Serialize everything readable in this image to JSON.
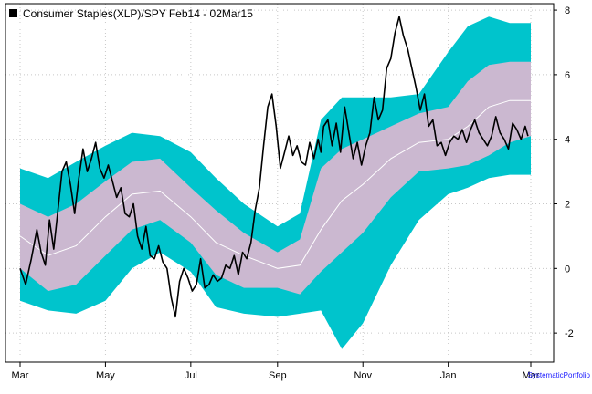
{
  "chart_data": {
    "type": "line",
    "title": "Consumer Staples(XLP)/SPY Feb14 - 02Mar15",
    "xlabel": "",
    "ylabel": "",
    "credit": "SystematicPortfolio",
    "x_axis": {
      "labels": [
        "Mar",
        "May",
        "Jul",
        "Sep",
        "Nov",
        "Jan",
        "Mar"
      ],
      "label_positions": [
        0,
        61,
        122,
        184,
        245,
        306,
        365
      ],
      "range": [
        0,
        380
      ]
    },
    "y_axis": {
      "ticks": [
        -2,
        0,
        2,
        4,
        6,
        8
      ],
      "range": [
        -2.9,
        8.2
      ],
      "position": "right"
    },
    "grid": true,
    "legend": {
      "position": "top-left",
      "entries": [
        "Consumer Staples(XLP)/SPY Feb14 - 02Mar15"
      ]
    },
    "colors": {
      "outer_band": "#00c4cc",
      "inner_band": "#cbb8d0",
      "midline": "#ffffff",
      "series": "#000000",
      "grid": "#c8c8c8"
    },
    "bands": {
      "x": [
        0,
        20,
        40,
        61,
        80,
        100,
        122,
        140,
        160,
        184,
        200,
        215,
        230,
        245,
        265,
        285,
        306,
        320,
        335,
        350,
        365
      ],
      "mid": [
        1.0,
        0.4,
        0.7,
        1.6,
        2.3,
        2.4,
        1.6,
        0.8,
        0.4,
        0.0,
        0.1,
        1.2,
        2.1,
        2.6,
        3.4,
        3.9,
        4.0,
        4.4,
        5.0,
        5.2,
        5.2
      ],
      "inner_upper": [
        2.0,
        1.6,
        2.0,
        2.7,
        3.3,
        3.4,
        2.5,
        1.8,
        1.1,
        0.5,
        0.9,
        3.1,
        3.7,
        4.0,
        4.4,
        4.8,
        5.0,
        5.8,
        6.3,
        6.4,
        6.4
      ],
      "inner_lower": [
        0.0,
        -0.7,
        -0.5,
        0.4,
        1.2,
        1.5,
        0.8,
        -0.2,
        -0.6,
        -0.6,
        -0.8,
        -0.1,
        0.5,
        1.1,
        2.2,
        3.0,
        3.1,
        3.2,
        3.5,
        3.9,
        4.1
      ],
      "outer_upper": [
        3.1,
        2.8,
        3.3,
        3.8,
        4.2,
        4.1,
        3.6,
        2.8,
        2.0,
        1.3,
        1.7,
        4.6,
        5.3,
        5.3,
        5.3,
        5.4,
        6.7,
        7.5,
        7.8,
        7.6,
        7.6
      ],
      "outer_lower": [
        -1.0,
        -1.3,
        -1.4,
        -1.0,
        0.0,
        0.5,
        -0.1,
        -1.2,
        -1.4,
        -1.5,
        -1.4,
        -1.3,
        -2.5,
        -1.7,
        0.1,
        1.5,
        2.3,
        2.5,
        2.8,
        2.9,
        2.9
      ]
    },
    "series": [
      {
        "name": "Consumer Staples(XLP)/SPY Feb14 - 02Mar15",
        "x": [
          0,
          4,
          8,
          12,
          15,
          18,
          21,
          24,
          27,
          30,
          33,
          36,
          39,
          42,
          45,
          48,
          51,
          54,
          57,
          60,
          63,
          66,
          69,
          72,
          75,
          78,
          81,
          84,
          87,
          90,
          93,
          96,
          99,
          102,
          105,
          108,
          111,
          114,
          117,
          120,
          123,
          126,
          129,
          132,
          135,
          138,
          141,
          144,
          147,
          150,
          153,
          156,
          159,
          162,
          165,
          168,
          171,
          174,
          177,
          180,
          183,
          186,
          189,
          192,
          195,
          198,
          201,
          204,
          207,
          210,
          213,
          215,
          217,
          220,
          223,
          226,
          229,
          232,
          235,
          238,
          241,
          244,
          247,
          250,
          253,
          256,
          259,
          262,
          265,
          268,
          271,
          274,
          277,
          280,
          283,
          286,
          289,
          292,
          295,
          298,
          301,
          304,
          307,
          310,
          313,
          316,
          319,
          322,
          325,
          328,
          331,
          334,
          337,
          340,
          343,
          346,
          349,
          352,
          355,
          358,
          361,
          363
        ],
        "values": [
          0.0,
          -0.5,
          0.3,
          1.2,
          0.5,
          0.1,
          1.5,
          0.6,
          1.8,
          3.0,
          3.3,
          2.6,
          1.7,
          2.8,
          3.7,
          3.0,
          3.4,
          3.9,
          3.1,
          2.8,
          3.2,
          2.7,
          2.2,
          2.5,
          1.7,
          1.6,
          2.0,
          1.0,
          0.6,
          1.3,
          0.4,
          0.3,
          0.7,
          0.2,
          0.0,
          -0.9,
          -1.5,
          -0.4,
          0.0,
          -0.3,
          -0.7,
          -0.5,
          0.3,
          -0.6,
          -0.5,
          -0.2,
          -0.4,
          -0.3,
          0.1,
          0.0,
          0.4,
          -0.2,
          0.5,
          0.3,
          0.8,
          1.8,
          2.5,
          3.8,
          5.0,
          5.4,
          4.4,
          3.1,
          3.6,
          4.1,
          3.5,
          3.8,
          3.3,
          3.2,
          3.9,
          3.4,
          4.0,
          3.6,
          4.4,
          4.6,
          3.8,
          4.5,
          3.6,
          5.0,
          4.2,
          3.4,
          3.9,
          3.2,
          3.8,
          4.2,
          5.3,
          4.6,
          4.9,
          6.2,
          6.5,
          7.3,
          7.8,
          7.2,
          6.8,
          6.2,
          5.6,
          4.9,
          5.4,
          4.4,
          4.6,
          3.8,
          3.9,
          3.5,
          3.9,
          4.1,
          4.0,
          4.3,
          3.9,
          4.3,
          4.6,
          4.2,
          4.0,
          3.8,
          4.1,
          4.7,
          4.2,
          4.0,
          3.7,
          4.5,
          4.3,
          4.0,
          4.4,
          4.1
        ]
      }
    ]
  }
}
